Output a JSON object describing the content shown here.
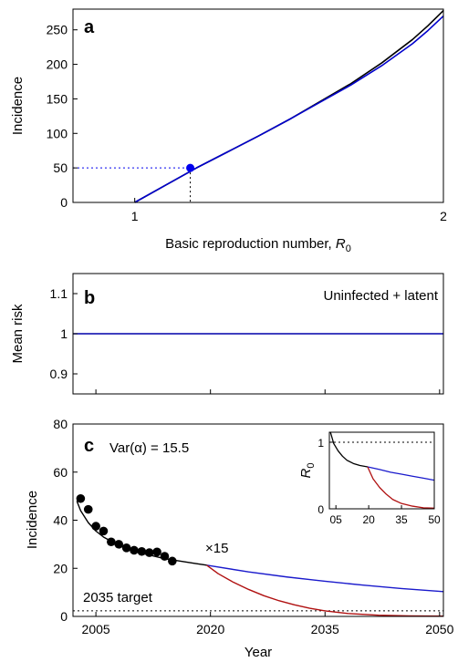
{
  "chart_data": [
    {
      "panel": "a",
      "type": "line",
      "xlabel_main": "Basic reproduction number, ",
      "xlabel_var": "R",
      "xlabel_sub": "0",
      "ylabel": "Incidence",
      "xlim": [
        0.8,
        2.0
      ],
      "ylim": [
        0,
        280
      ],
      "xticks": [
        1,
        2
      ],
      "yticks": [
        0,
        50,
        100,
        150,
        200,
        250
      ],
      "series": [
        {
          "color": "#000000",
          "x": [
            1.0,
            1.1,
            1.2,
            1.3,
            1.4,
            1.5,
            1.6,
            1.7,
            1.8,
            1.9,
            1.95,
            2.0
          ],
          "y": [
            0,
            25,
            50,
            73,
            96,
            120,
            146,
            172,
            202,
            236,
            256,
            278
          ]
        },
        {
          "color": "#0000cc",
          "x": [
            1.0,
            1.1,
            1.2,
            1.3,
            1.4,
            1.5,
            1.6,
            1.7,
            1.8,
            1.9,
            1.95,
            2.0
          ],
          "y": [
            0,
            25,
            50,
            73,
            96,
            120,
            145,
            170,
            198,
            230,
            249,
            270
          ]
        }
      ],
      "marker": {
        "x": 1.18,
        "y": 50,
        "color": "#0000ee"
      }
    },
    {
      "panel": "b",
      "type": "line",
      "ylabel": "Mean risk",
      "annotation": "Uninfected + latent",
      "xlim": [
        2002,
        2050.5
      ],
      "ylim": [
        0.85,
        1.15
      ],
      "yticks": [
        0.9,
        1,
        1.1
      ],
      "ytick_labels": [
        "0.9",
        "1",
        "1.1"
      ],
      "xticks": [
        2005,
        2020,
        2035,
        2050
      ],
      "series": [
        {
          "color": "#0000aa",
          "x": [
            2002,
            2050.5
          ],
          "y": [
            1,
            1
          ]
        }
      ]
    },
    {
      "panel": "c",
      "type": "line",
      "xlabel": "Year",
      "ylabel": "Incidence",
      "var_label": "Var(α) = 15.5",
      "multiplier_label": "×15",
      "target_label": "2035 target",
      "target_value": 2.3,
      "xlim": [
        2002,
        2050.5
      ],
      "ylim": [
        0,
        80
      ],
      "xticks": [
        2005,
        2020,
        2035,
        2050
      ],
      "yticks": [
        0,
        20,
        40,
        60,
        80
      ],
      "series": [
        {
          "color": "#000000",
          "x": [
            2002.5,
            2003,
            2004,
            2005,
            2006,
            2008,
            2010,
            2012,
            2014,
            2016,
            2018,
            2019.5
          ],
          "y": [
            48,
            44,
            39,
            35.5,
            33,
            29.5,
            27,
            25.5,
            24,
            23,
            22,
            21.3
          ]
        },
        {
          "color": "#1a1acc",
          "x": [
            2019.5,
            2025,
            2030,
            2035,
            2040,
            2045,
            2050.5
          ],
          "y": [
            21.3,
            18.5,
            16.4,
            14.6,
            13,
            11.6,
            10.3
          ]
        },
        {
          "color": "#b01010",
          "x": [
            2019.5,
            2021,
            2023,
            2025,
            2027,
            2029,
            2031,
            2033,
            2035,
            2038,
            2042,
            2046,
            2050.5
          ],
          "y": [
            21.3,
            17.8,
            14.2,
            11.2,
            8.6,
            6.5,
            4.8,
            3.4,
            2.3,
            1.2,
            0.5,
            0.2,
            0.1
          ]
        }
      ],
      "points": {
        "color": "#000000",
        "x": [
          2003,
          2004,
          2005,
          2006,
          2007,
          2008,
          2009,
          2010,
          2011,
          2012,
          2013,
          2014,
          2015
        ],
        "y": [
          49,
          44.5,
          37.5,
          35.5,
          31,
          30,
          28.5,
          27.5,
          27,
          26.5,
          26.8,
          25,
          23
        ]
      },
      "inset": {
        "ylabel_var": "R",
        "ylabel_sub": "0",
        "xlim": [
          2002,
          2050
        ],
        "ylim": [
          0,
          1.15
        ],
        "xticks": [
          2005,
          2020,
          2035,
          2050
        ],
        "xtick_labels": [
          "05",
          "20",
          "35",
          "50"
        ],
        "yticks": [
          0,
          1
        ],
        "ytick_labels": [
          "0",
          "1"
        ],
        "reference_value": 1,
        "series": [
          {
            "color": "#000000",
            "x": [
              2002.5,
              2004,
              2006,
              2008,
              2010,
              2013,
              2016,
              2019.5
            ],
            "y": [
              1.15,
              0.98,
              0.87,
              0.79,
              0.73,
              0.68,
              0.65,
              0.63
            ]
          },
          {
            "color": "#1a1acc",
            "x": [
              2019.5,
              2025,
              2030,
              2035,
              2040,
              2045,
              2050
            ],
            "y": [
              0.63,
              0.59,
              0.55,
              0.52,
              0.49,
              0.46,
              0.43
            ]
          },
          {
            "color": "#b01010",
            "x": [
              2019.5,
              2022,
              2025,
              2028,
              2031,
              2035,
              2040,
              2045,
              2050
            ],
            "y": [
              0.63,
              0.45,
              0.32,
              0.22,
              0.14,
              0.08,
              0.04,
              0.015,
              0.01
            ]
          }
        ]
      }
    }
  ]
}
